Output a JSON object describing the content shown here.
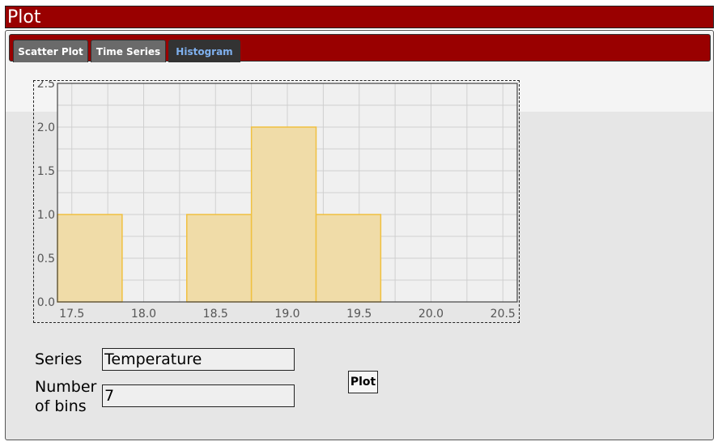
{
  "window": {
    "title": "Plot"
  },
  "tabs": [
    {
      "label": "Scatter Plot",
      "active": false
    },
    {
      "label": "Time Series",
      "active": false
    },
    {
      "label": "Histogram",
      "active": true
    }
  ],
  "form": {
    "series_label": "Series",
    "series_value": "Temperature",
    "bins_label_line1": "Number",
    "bins_label_line2": "of bins",
    "bins_value": "7",
    "plot_button": "Plot"
  },
  "colors": {
    "accent": "#990000",
    "bar_fill": "#f0dca8",
    "bar_stroke": "#f0c040",
    "active_tab_text": "#7fb0ee"
  },
  "chart_data": {
    "type": "bar",
    "bins": [
      {
        "x0": 17.4,
        "x1": 17.85,
        "count": 1
      },
      {
        "x0": 17.85,
        "x1": 18.3,
        "count": 0
      },
      {
        "x0": 18.3,
        "x1": 18.75,
        "count": 1
      },
      {
        "x0": 18.75,
        "x1": 19.2,
        "count": 2
      },
      {
        "x0": 19.2,
        "x1": 19.65,
        "count": 1
      },
      {
        "x0": 19.65,
        "x1": 20.1,
        "count": 0
      },
      {
        "x0": 20.1,
        "x1": 20.6,
        "count": 0
      }
    ],
    "xlim": [
      17.4,
      20.6
    ],
    "ylim": [
      0,
      2.5
    ],
    "x_ticks": [
      "17.5",
      "18.0",
      "18.5",
      "19.0",
      "19.5",
      "20.0",
      "20.5"
    ],
    "y_ticks": [
      "0.0",
      "0.5",
      "1.0",
      "1.5",
      "2.0",
      "2.5"
    ],
    "grid": true,
    "legend": "none"
  }
}
